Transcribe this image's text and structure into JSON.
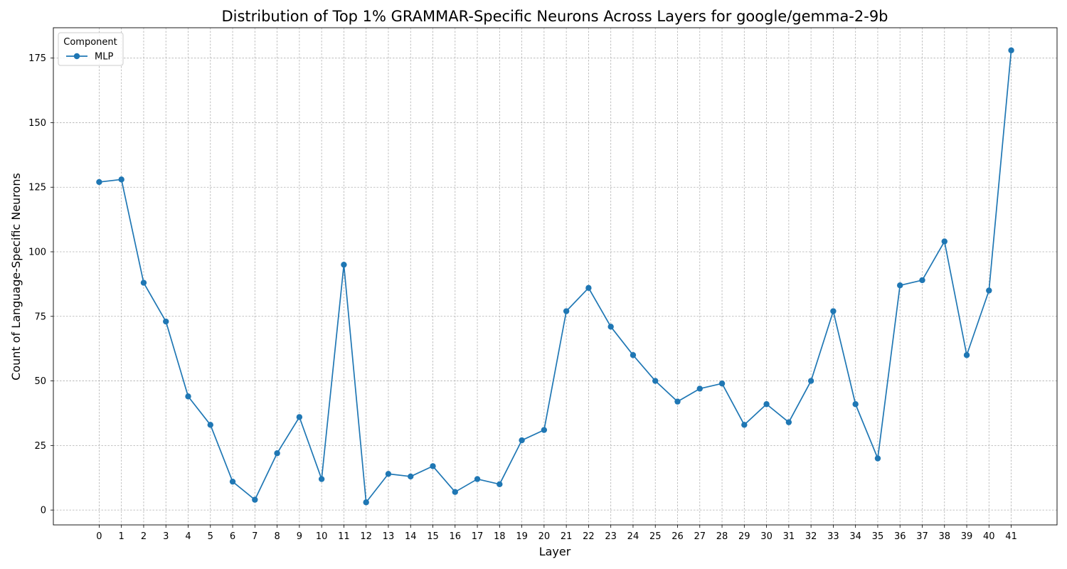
{
  "chart_data": {
    "type": "line",
    "title": "Distribution of Top 1% GRAMMAR-Specific Neurons Across Layers for google/gemma-2-9b",
    "xlabel": "Layer",
    "ylabel": "Count of Language-Specific Neurons",
    "x": [
      0,
      1,
      2,
      3,
      4,
      5,
      6,
      7,
      8,
      9,
      10,
      11,
      12,
      13,
      14,
      15,
      16,
      17,
      18,
      19,
      20,
      21,
      22,
      23,
      24,
      25,
      26,
      27,
      28,
      29,
      30,
      31,
      32,
      33,
      34,
      35,
      36,
      37,
      38,
      39,
      40,
      41
    ],
    "series": [
      {
        "name": "MLP",
        "color": "#1f77b4",
        "values": [
          127,
          128,
          88,
          73,
          44,
          33,
          11,
          4,
          22,
          36,
          12,
          95,
          3,
          14,
          13,
          17,
          7,
          12,
          10,
          27,
          31,
          77,
          86,
          71,
          60,
          50,
          42,
          47,
          49,
          33,
          41,
          34,
          50,
          77,
          41,
          20,
          87,
          89,
          104,
          60,
          85,
          178
        ]
      }
    ],
    "xticks": [
      "0",
      "1",
      "2",
      "3",
      "4",
      "5",
      "6",
      "7",
      "8",
      "9",
      "10",
      "11",
      "12",
      "13",
      "14",
      "15",
      "16",
      "17",
      "18",
      "19",
      "20",
      "21",
      "22",
      "23",
      "24",
      "25",
      "26",
      "27",
      "28",
      "29",
      "30",
      "31",
      "32",
      "33",
      "34",
      "35",
      "36",
      "37",
      "38",
      "39",
      "40",
      "41"
    ],
    "yticks": [
      0,
      25,
      50,
      75,
      100,
      125,
      150,
      175
    ],
    "xlim": [
      -2.06,
      43.06
    ],
    "ylim": [
      -5.75,
      186.75
    ],
    "grid": true,
    "legend": {
      "title": "Component",
      "placement": "top-left"
    }
  }
}
